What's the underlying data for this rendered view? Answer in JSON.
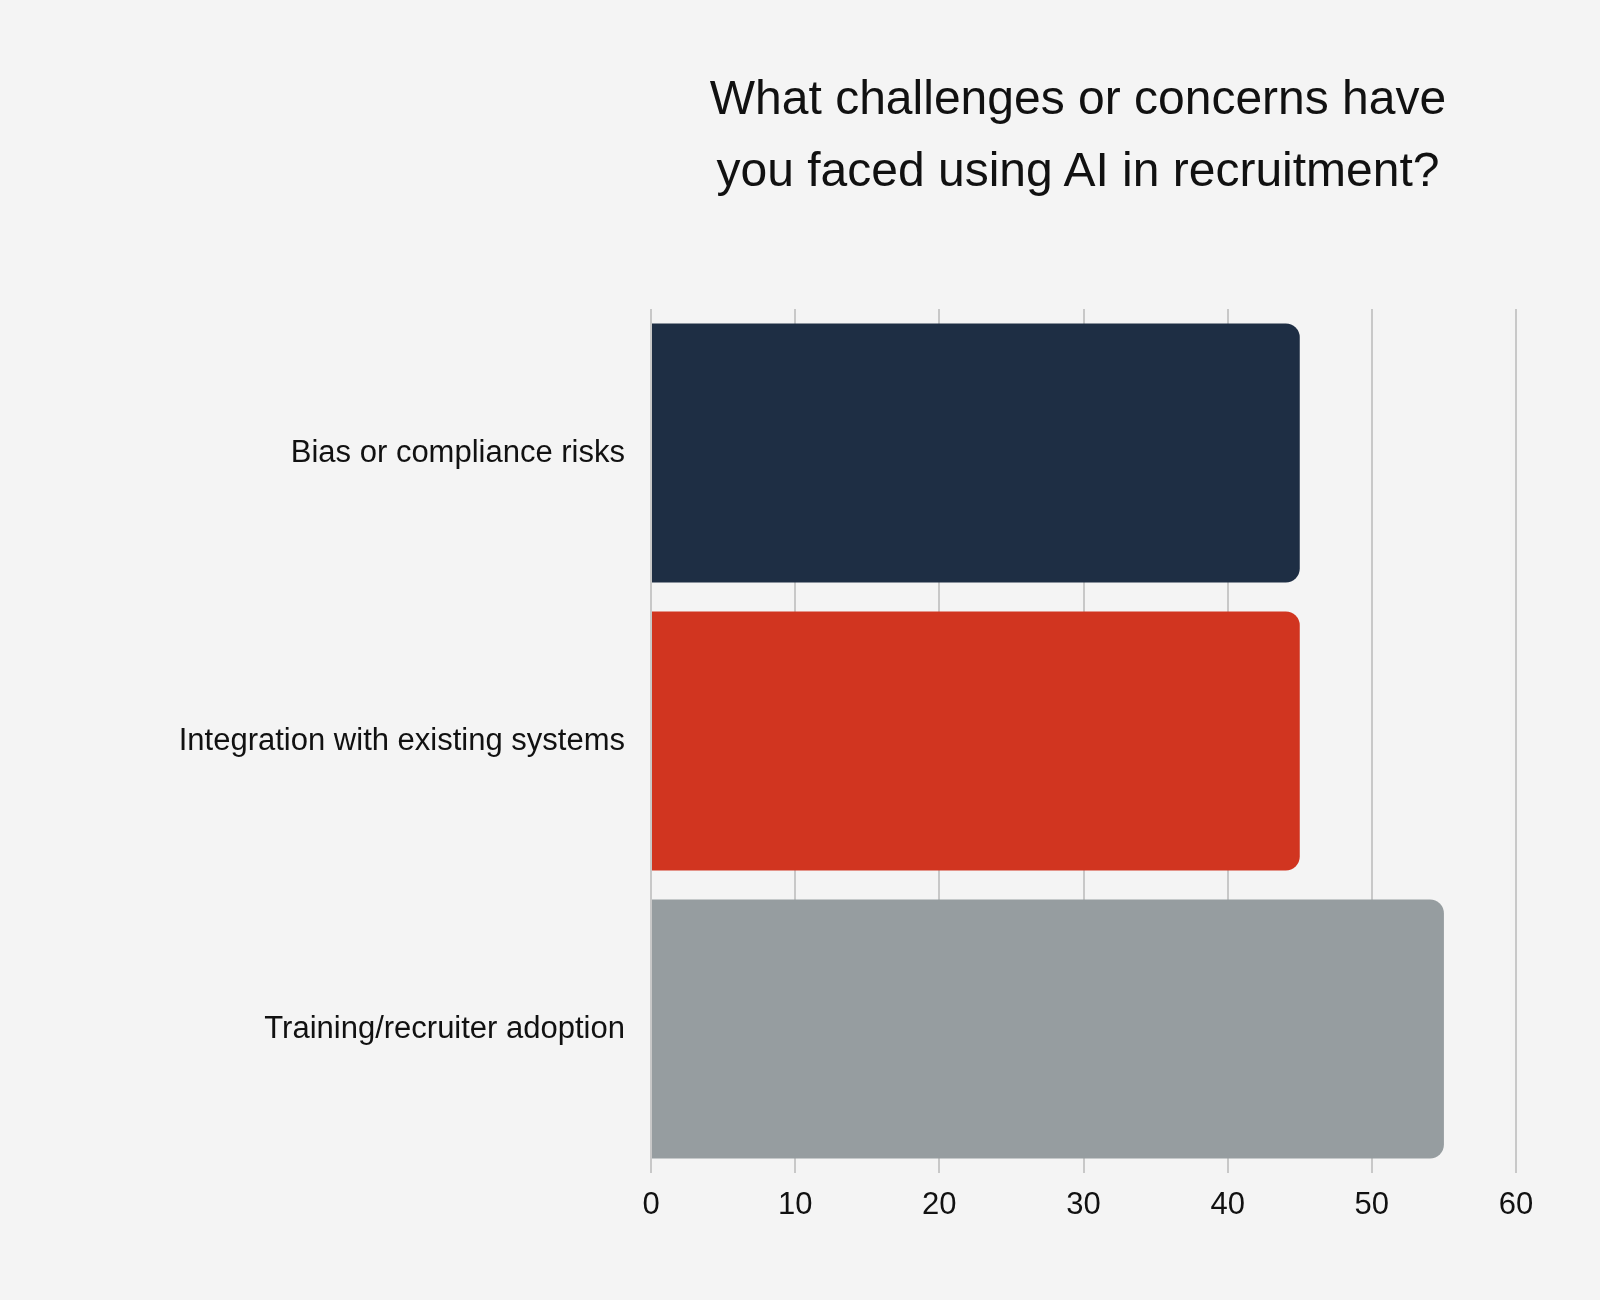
{
  "chart_data": {
    "type": "bar",
    "orientation": "horizontal",
    "title": "What challenges or concerns have you faced using AI in recruitment?",
    "categories": [
      "Bias or compliance risks",
      "Integration with existing systems",
      "Training/recruiter adoption"
    ],
    "values": [
      45,
      45,
      55
    ],
    "colors": [
      "#1e2e44",
      "#d13520",
      "#969da0"
    ],
    "xlim": [
      0,
      60
    ],
    "xticks": [
      0,
      10,
      20,
      30,
      40,
      50,
      60
    ],
    "grid": "x"
  }
}
